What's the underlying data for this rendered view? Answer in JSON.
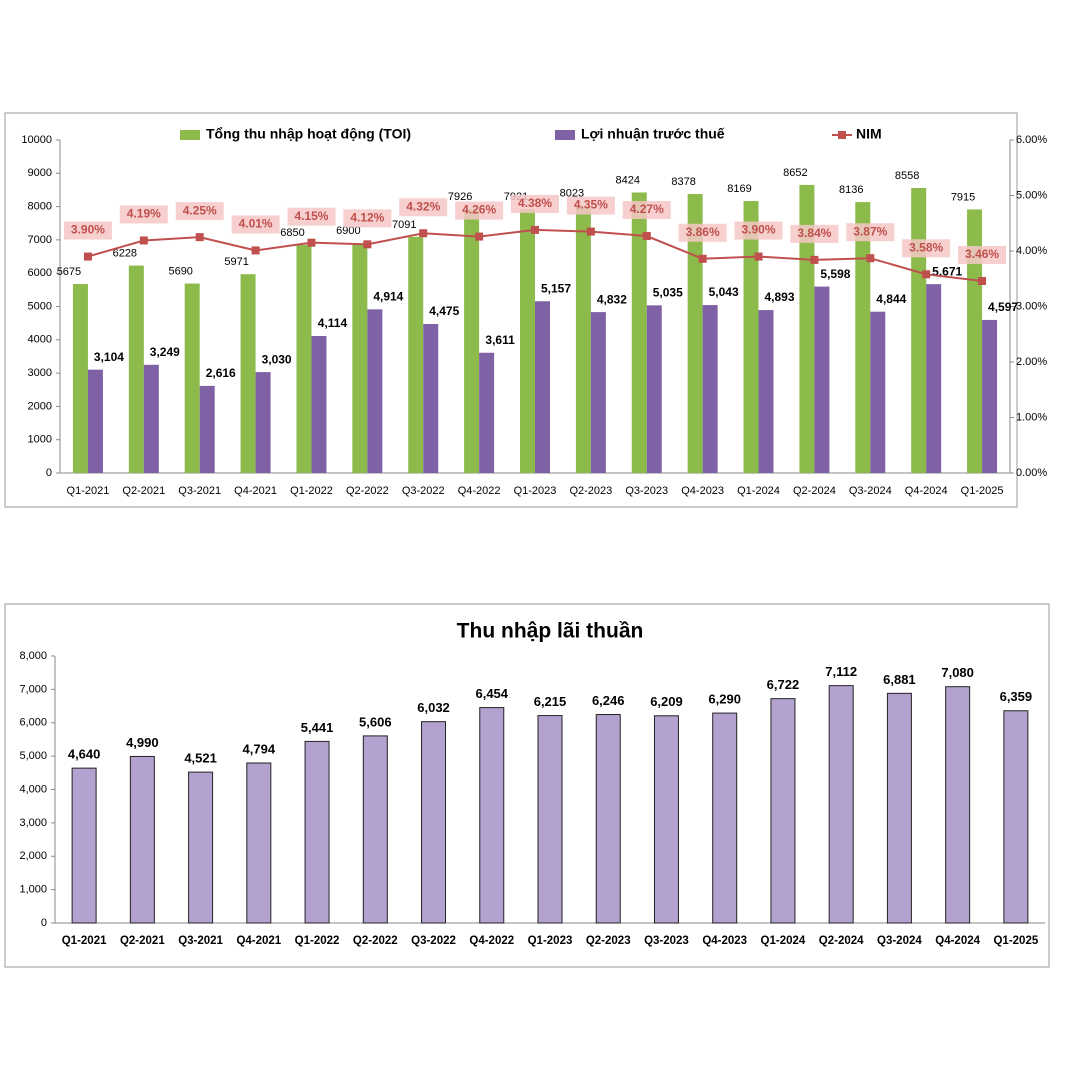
{
  "chart_data": [
    {
      "type": "combo",
      "categories": [
        "Q1-2021",
        "Q2-2021",
        "Q3-2021",
        "Q4-2021",
        "Q1-2022",
        "Q2-2022",
        "Q3-2022",
        "Q4-2022",
        "Q1-2023",
        "Q2-2023",
        "Q3-2023",
        "Q4-2023",
        "Q1-2024",
        "Q2-2024",
        "Q3-2024",
        "Q4-2024",
        "Q1-2025"
      ],
      "series": [
        {
          "name": "Tổng thu nhập hoạt động (TOI)",
          "type": "bar",
          "color": "#8cbb4c",
          "values": [
            5675,
            6228,
            5690,
            5971,
            6850,
            6900,
            7091,
            7926,
            7921,
            8023,
            8424,
            8378,
            8169,
            8652,
            8136,
            8558,
            7915
          ]
        },
        {
          "name": "Lợi nhuận trước thuế",
          "type": "bar",
          "color": "#7f62a6",
          "values": [
            3104,
            3249,
            2616,
            3030,
            4114,
            4914,
            4475,
            3611,
            5157,
            4832,
            5035,
            5043,
            4893,
            5598,
            4844,
            5671,
            4597
          ],
          "value_labels": [
            "3,104",
            "3,249",
            "2,616",
            "3,030",
            "4,114",
            "4,914",
            "4,475",
            "3,611",
            "5,157",
            "4,832",
            "5,035",
            "5,043",
            "4,893",
            "5,598",
            "4,844",
            "5,671",
            "4,597"
          ]
        },
        {
          "name": "NIM",
          "type": "line",
          "axis": "y2",
          "color": "#c0504d",
          "values": [
            3.9,
            4.19,
            4.25,
            4.01,
            4.15,
            4.12,
            4.32,
            4.26,
            4.38,
            4.35,
            4.27,
            3.86,
            3.9,
            3.84,
            3.87,
            3.58,
            3.46
          ],
          "value_labels": [
            "3.90%",
            "4.19%",
            "4.25%",
            "4.01%",
            "4.15%",
            "4.12%",
            "4.32%",
            "4.26%",
            "4.38%",
            "4.35%",
            "4.27%",
            "3.86%",
            "3.90%",
            "3.84%",
            "3.87%",
            "3.58%",
            "3.46%"
          ]
        }
      ],
      "ylim": [
        0,
        10000
      ],
      "yticks": [
        0,
        1000,
        2000,
        3000,
        4000,
        5000,
        6000,
        7000,
        8000,
        9000,
        10000
      ],
      "y2lim": [
        0,
        6
      ],
      "y2ticks": [
        {
          "value": 0,
          "label": "0.00%"
        },
        {
          "value": 1,
          "label": "1.00%"
        },
        {
          "value": 2,
          "label": "2.00%"
        },
        {
          "value": 3,
          "label": "3.00%"
        },
        {
          "value": 4,
          "label": "4.00%"
        },
        {
          "value": 5,
          "label": "5.00%"
        },
        {
          "value": 6,
          "label": "6.00%"
        }
      ],
      "legend": "top",
      "grid": false
    },
    {
      "type": "bar",
      "title": "Thu nhập lãi thuần",
      "color": "#b3a2cf",
      "categories": [
        "Q1-2021",
        "Q2-2021",
        "Q3-2021",
        "Q4-2021",
        "Q1-2022",
        "Q2-2022",
        "Q3-2022",
        "Q4-2022",
        "Q1-2023",
        "Q2-2023",
        "Q3-2023",
        "Q4-2023",
        "Q1-2024",
        "Q2-2024",
        "Q3-2024",
        "Q4-2024",
        "Q1-2025"
      ],
      "values": [
        4640,
        4990,
        4521,
        4794,
        5441,
        5606,
        6032,
        6454,
        6215,
        6246,
        6209,
        6290,
        6722,
        7112,
        6881,
        7080,
        6359
      ],
      "value_labels": [
        "4,640",
        "4,990",
        "4,521",
        "4,794",
        "5,441",
        "5,606",
        "6,032",
        "6,454",
        "6,215",
        "6,246",
        "6,209",
        "6,290",
        "6,722",
        "7,112",
        "6,881",
        "7,080",
        "6,359"
      ],
      "ylim": [
        0,
        8000
      ],
      "yticks": [
        0,
        {
          "value": 1000,
          "label": "1,000"
        },
        {
          "value": 2000,
          "label": "2,000"
        },
        {
          "value": 3000,
          "label": "3,000"
        },
        {
          "value": 4000,
          "label": "4,000"
        },
        {
          "value": 5000,
          "label": "5,000"
        },
        {
          "value": 6000,
          "label": "6,000"
        },
        {
          "value": 7000,
          "label": "7,000"
        },
        {
          "value": 8000,
          "label": "8,000"
        }
      ],
      "grid": false
    }
  ]
}
